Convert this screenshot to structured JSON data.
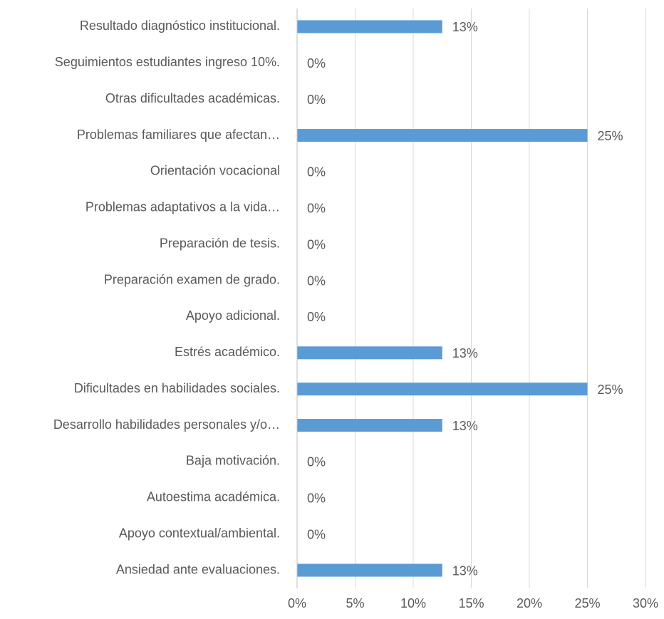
{
  "chart_data": {
    "type": "hbar",
    "categories": [
      "Resultado diagnóstico institucional.",
      "Seguimientos estudiantes ingreso 10%.",
      "Otras dificultades académicas.",
      "Problemas familiares que afectan…",
      "Orientación vocacional",
      "Problemas adaptativos a la vida…",
      "Preparación de tesis.",
      "Preparación examen de grado.",
      "Apoyo adicional.",
      "Estrés académico.",
      "Dificultades en habilidades sociales.",
      "Desarrollo habilidades personales y/o…",
      "Baja motivación.",
      "Autoestima académica.",
      "Apoyo contextual/ambiental.",
      "Ansiedad ante evaluaciones."
    ],
    "values": [
      12.5,
      0,
      0,
      25,
      0,
      0,
      0,
      0,
      0,
      12.5,
      25,
      12.5,
      0,
      0,
      0,
      12.5
    ],
    "value_labels": [
      "13%",
      "0%",
      "0%",
      "25%",
      "0%",
      "0%",
      "0%",
      "0%",
      "0%",
      "13%",
      "25%",
      "13%",
      "0%",
      "0%",
      "0%",
      "13%"
    ],
    "color": "#5b9bd5",
    "xlim": [
      0,
      30
    ],
    "xticks": [
      {
        "value": 0,
        "label": "0%"
      },
      {
        "value": 5,
        "label": "5%"
      },
      {
        "value": 10,
        "label": "10%"
      },
      {
        "value": 15,
        "label": "15%"
      },
      {
        "value": 20,
        "label": "20%"
      },
      {
        "value": 25,
        "label": "25%"
      },
      {
        "value": 30,
        "label": "30%"
      }
    ],
    "grid": true
  }
}
